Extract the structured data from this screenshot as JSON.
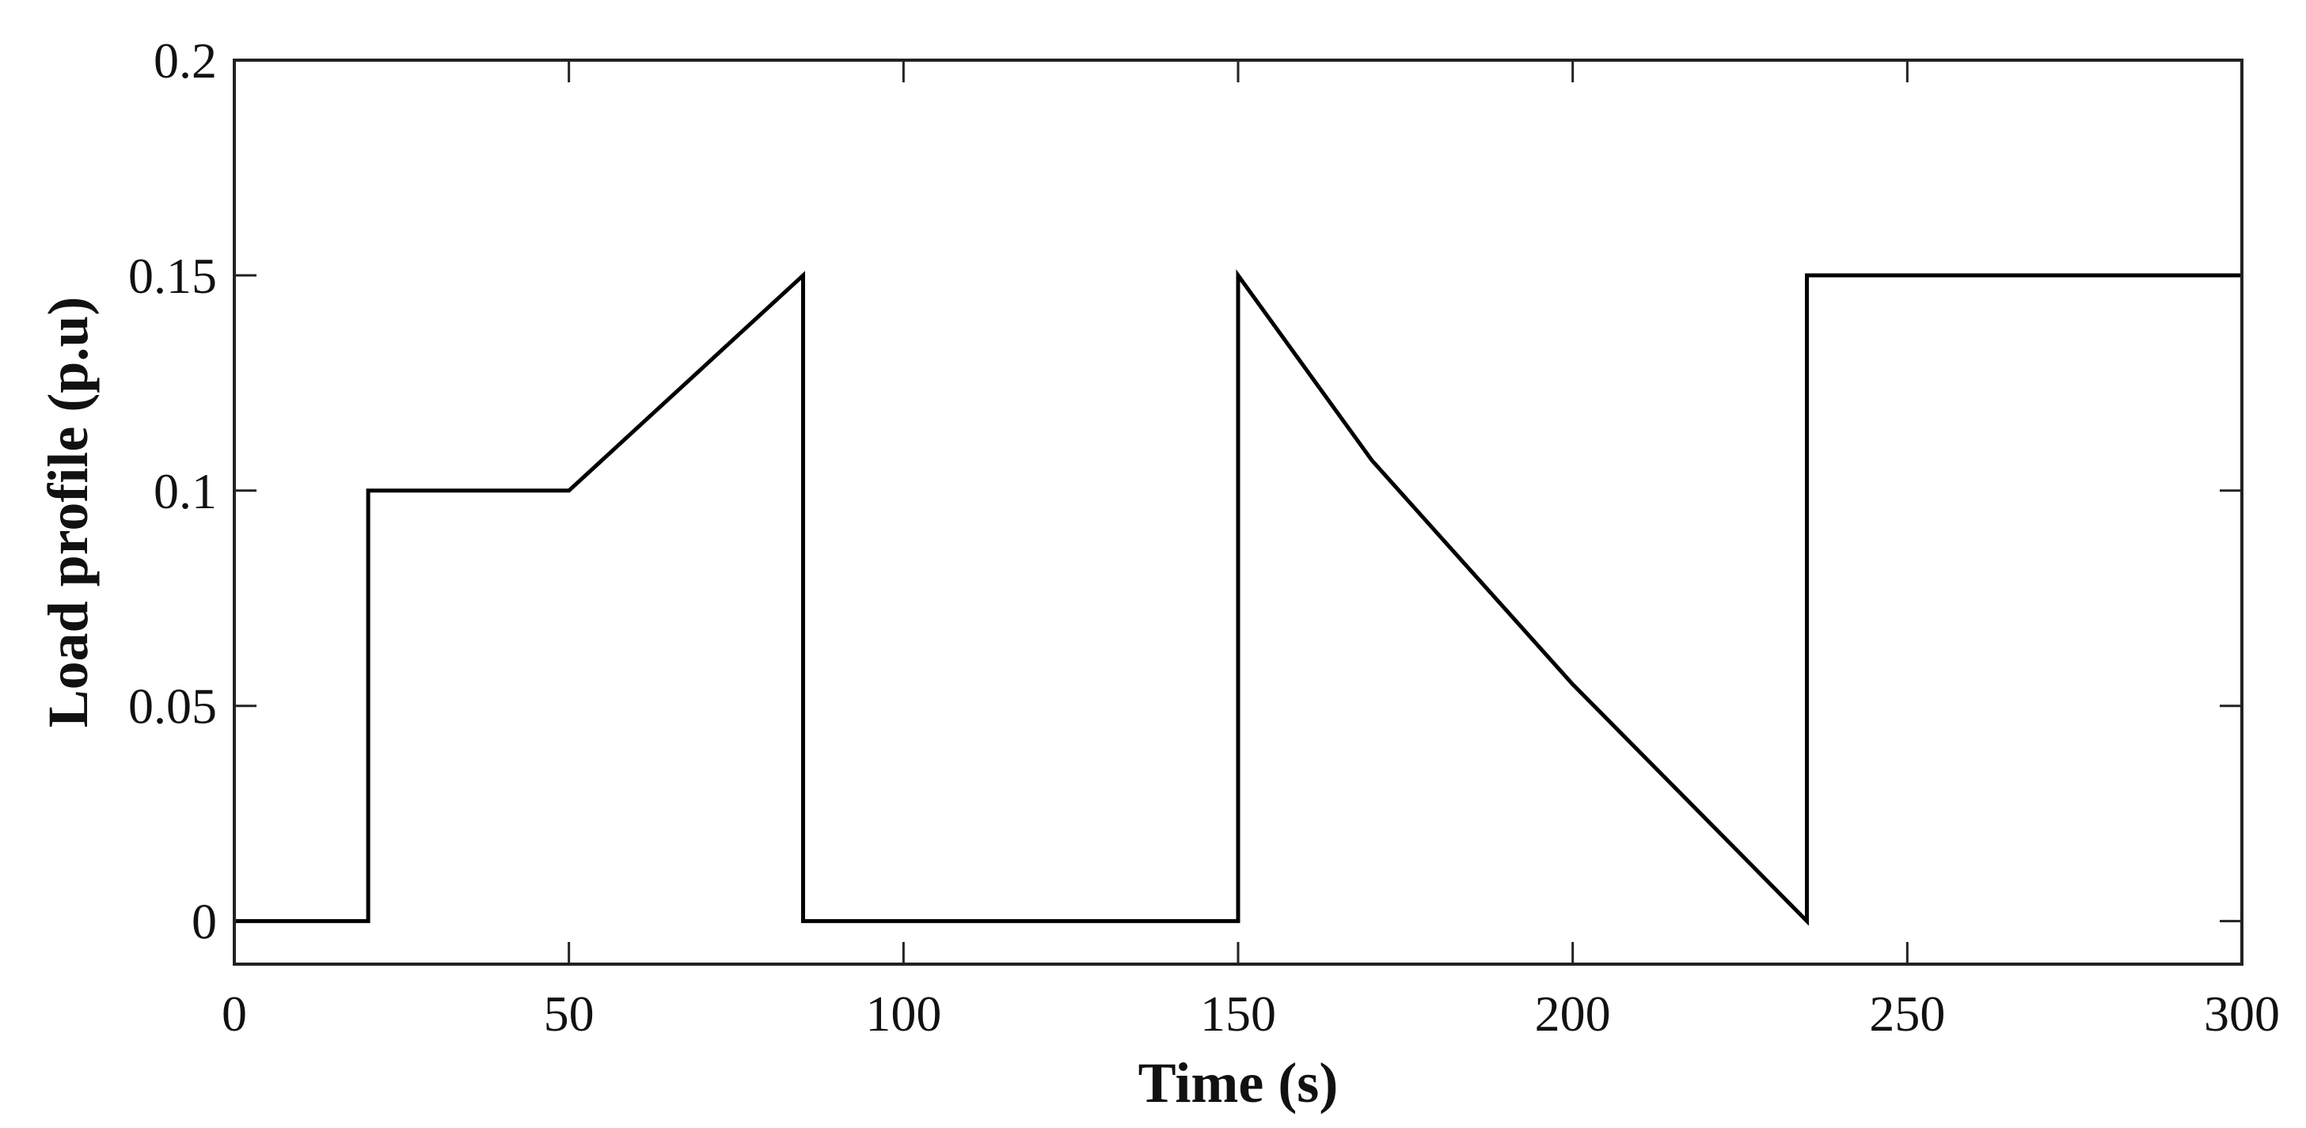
{
  "chart_data": {
    "type": "line",
    "title": "",
    "xlabel": "Time (s)",
    "ylabel": "Load profile (p.u)",
    "xlim": [
      0,
      300
    ],
    "ylim": [
      -0.01,
      0.2
    ],
    "xticks": [
      0,
      50,
      100,
      150,
      200,
      250,
      300
    ],
    "yticks": [
      0,
      0.05,
      0.1,
      0.15,
      0.2
    ],
    "xtick_labels": [
      "0",
      "50",
      "100",
      "150",
      "200",
      "250",
      "300"
    ],
    "ytick_labels": [
      "0",
      "0.05",
      "0.1",
      "0.15",
      "0.2"
    ],
    "grid": false,
    "series": [
      {
        "color": "#000000",
        "x": [
          0,
          20,
          20,
          50,
          85,
          85,
          150,
          150,
          170,
          200,
          235,
          235,
          300
        ],
        "y": [
          0,
          0,
          0.1,
          0.1,
          0.15,
          0,
          0,
          0.15,
          0.107,
          0.055,
          0,
          0.15,
          0.15
        ]
      }
    ]
  }
}
